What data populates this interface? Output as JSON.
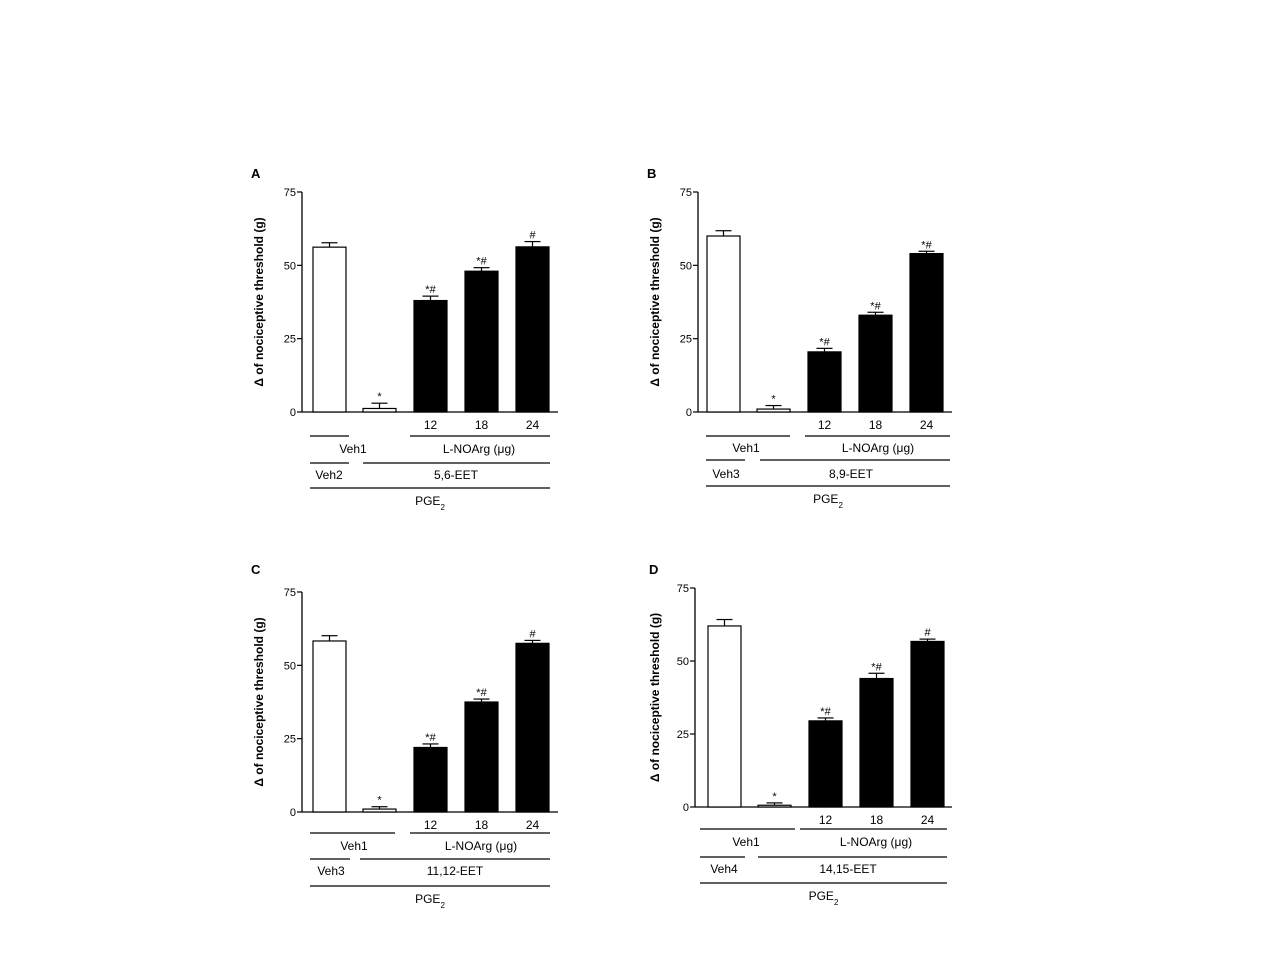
{
  "colors": {
    "vehicle_bar": "#ffffff",
    "treatment_bar": "#000000",
    "axis": "#000000"
  },
  "chart_data": [
    {
      "panel": "A",
      "type": "bar",
      "ylabel": "Δ of nociceptive threshold (g)",
      "ylim": [
        0,
        75
      ],
      "yticks": [
        "0",
        "25",
        "50",
        "75"
      ],
      "categories": [
        "",
        "",
        "12",
        "18",
        "24"
      ],
      "values": [
        56.2,
        1.2,
        38.0,
        48.0,
        56.3
      ],
      "errors": [
        1.5,
        1.8,
        1.5,
        1.2,
        1.8
      ],
      "bar_colors": [
        "white",
        "white",
        "black",
        "black",
        "black"
      ],
      "annotations": [
        "",
        "*",
        "*#",
        "*#",
        "#"
      ],
      "groups": {
        "row1": [
          "Veh1",
          "L-NOArg (μg)"
        ],
        "row2": [
          "Veh2",
          "5,6-EET"
        ],
        "row3": "PGE2"
      }
    },
    {
      "panel": "B",
      "type": "bar",
      "ylabel": "Δ of nociceptive threshold (g)",
      "ylim": [
        0,
        75
      ],
      "yticks": [
        "0",
        "25",
        "50",
        "75"
      ],
      "categories": [
        "",
        "",
        "12",
        "18",
        "24"
      ],
      "values": [
        60.0,
        1.0,
        20.5,
        33.0,
        54.0
      ],
      "errors": [
        1.8,
        1.2,
        1.2,
        1.0,
        0.8
      ],
      "bar_colors": [
        "white",
        "white",
        "black",
        "black",
        "black"
      ],
      "annotations": [
        "",
        "*",
        "*#",
        "*#",
        "*#"
      ],
      "groups": {
        "row1": [
          "Veh1",
          "L-NOArg (μg)"
        ],
        "row2": [
          "Veh3",
          "8,9-EET"
        ],
        "row3": "PGE2"
      }
    },
    {
      "panel": "C",
      "type": "bar",
      "ylabel": "Δ of nociceptive threshold (g)",
      "ylim": [
        0,
        75
      ],
      "yticks": [
        "0",
        "25",
        "50",
        "75"
      ],
      "categories": [
        "",
        "",
        "12",
        "18",
        "24"
      ],
      "values": [
        58.3,
        1.0,
        22.0,
        37.5,
        57.5
      ],
      "errors": [
        1.8,
        0.8,
        1.2,
        1.0,
        1.0
      ],
      "bar_colors": [
        "white",
        "white",
        "black",
        "black",
        "black"
      ],
      "annotations": [
        "",
        "*",
        "*#",
        "*#",
        "#"
      ],
      "groups": {
        "row1": [
          "Veh1",
          "L-NOArg (μg)"
        ],
        "row2": [
          "Veh3",
          "11,12-EET"
        ],
        "row3": "PGE2"
      }
    },
    {
      "panel": "D",
      "type": "bar",
      "ylabel": "Δ of nociceptive threshold (g)",
      "ylim": [
        0,
        75
      ],
      "yticks": [
        "0",
        "25",
        "50",
        "75"
      ],
      "categories": [
        "",
        "",
        "12",
        "18",
        "24"
      ],
      "values": [
        62.0,
        0.6,
        29.5,
        44.0,
        56.7
      ],
      "errors": [
        2.2,
        0.8,
        1.0,
        1.8,
        0.8
      ],
      "bar_colors": [
        "white",
        "white",
        "black",
        "black",
        "black"
      ],
      "annotations": [
        "",
        "*",
        "*#",
        "*#",
        "#"
      ],
      "groups": {
        "row1": [
          "Veh1",
          "L-NOArg (μg)"
        ],
        "row2": [
          "Veh4",
          "14,15-EET"
        ],
        "row3": "PGE2"
      }
    }
  ]
}
